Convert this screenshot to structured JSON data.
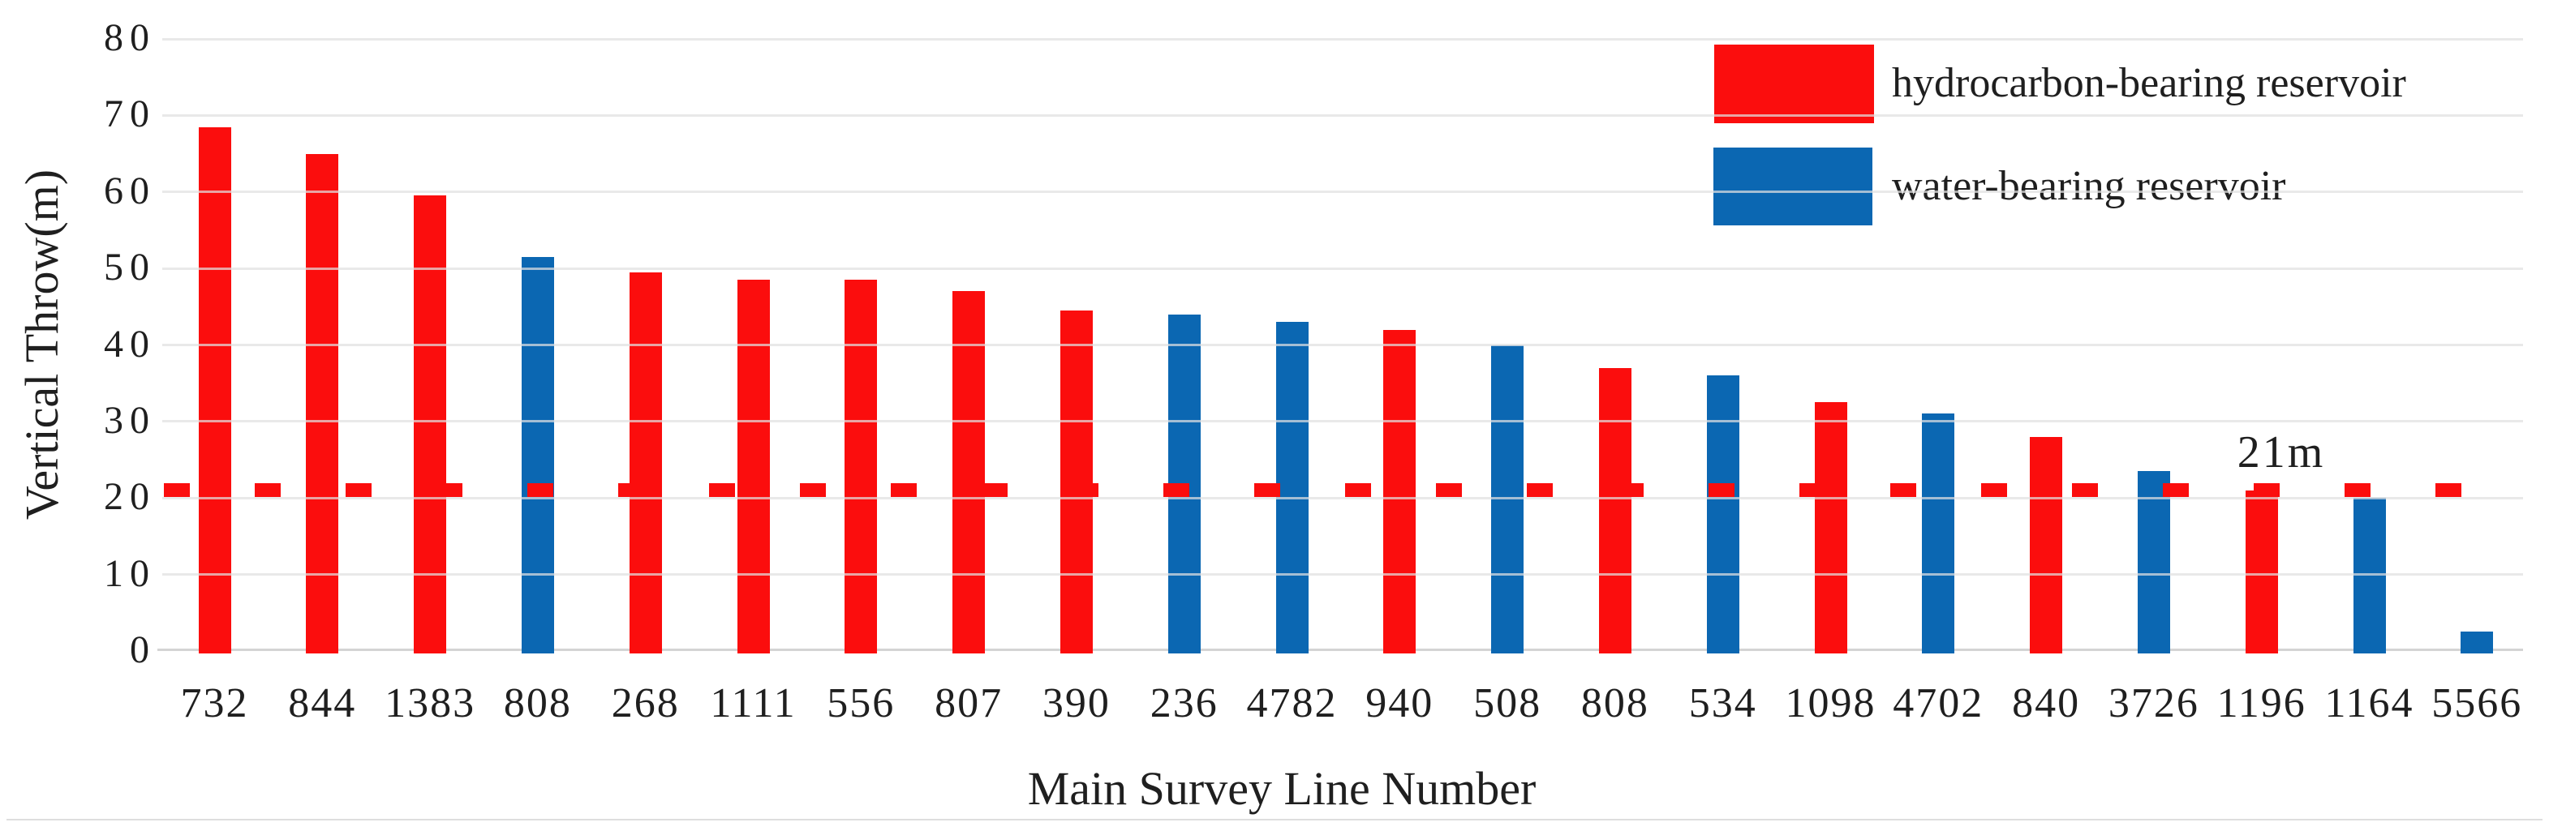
{
  "chart_data": {
    "type": "bar",
    "title": "",
    "xlabel": "Main Survey Line Number",
    "ylabel": "Vertical Throw(m)",
    "ylim": [
      0,
      80
    ],
    "ytick_step": 10,
    "yticks": [
      0,
      10,
      20,
      30,
      40,
      50,
      60,
      70,
      80
    ],
    "grid": true,
    "legend_position": "top-right",
    "categories": [
      "732",
      "844",
      "1383",
      "808",
      "268",
      "1111",
      "556",
      "807",
      "390",
      "236",
      "4782",
      "940",
      "508",
      "808",
      "534",
      "1098",
      "4702",
      "840",
      "3726",
      "1196",
      "1164",
      "5566"
    ],
    "bars": [
      {
        "category": "732",
        "value": 68.5,
        "series": "hydrocarbon-bearing reservoir"
      },
      {
        "category": "844",
        "value": 65,
        "series": "hydrocarbon-bearing reservoir"
      },
      {
        "category": "1383",
        "value": 59.5,
        "series": "hydrocarbon-bearing reservoir"
      },
      {
        "category": "808",
        "value": 51.5,
        "series": "water-bearing reservoir"
      },
      {
        "category": "268",
        "value": 49.5,
        "series": "hydrocarbon-bearing reservoir"
      },
      {
        "category": "1111",
        "value": 48.5,
        "series": "hydrocarbon-bearing reservoir"
      },
      {
        "category": "556",
        "value": 48.5,
        "series": "hydrocarbon-bearing reservoir"
      },
      {
        "category": "807",
        "value": 47,
        "series": "hydrocarbon-bearing reservoir"
      },
      {
        "category": "390",
        "value": 44.5,
        "series": "hydrocarbon-bearing reservoir"
      },
      {
        "category": "236",
        "value": 44,
        "series": "water-bearing reservoir"
      },
      {
        "category": "4782",
        "value": 43,
        "series": "water-bearing reservoir"
      },
      {
        "category": "940",
        "value": 42,
        "series": "hydrocarbon-bearing reservoir"
      },
      {
        "category": "508",
        "value": 40,
        "series": "water-bearing reservoir"
      },
      {
        "category": "808",
        "value": 37,
        "series": "hydrocarbon-bearing reservoir"
      },
      {
        "category": "534",
        "value": 36,
        "series": "water-bearing reservoir"
      },
      {
        "category": "1098",
        "value": 32.5,
        "series": "hydrocarbon-bearing reservoir"
      },
      {
        "category": "4702",
        "value": 31,
        "series": "water-bearing reservoir"
      },
      {
        "category": "840",
        "value": 28,
        "series": "hydrocarbon-bearing reservoir"
      },
      {
        "category": "3726",
        "value": 23.5,
        "series": "water-bearing reservoir"
      },
      {
        "category": "1196",
        "value": 21,
        "series": "hydrocarbon-bearing reservoir"
      },
      {
        "category": "1164",
        "value": 20,
        "series": "water-bearing reservoir"
      },
      {
        "category": "5566",
        "value": 2.5,
        "series": "water-bearing reservoir"
      }
    ],
    "legend": [
      {
        "name": "hydrocarbon-bearing reservoir",
        "color": "#FB0D0D"
      },
      {
        "name": "water-bearing reservoir",
        "color": "#0B67B2"
      }
    ],
    "reference_line": {
      "value": 21,
      "label": "21m",
      "style": "dashed",
      "color": "#FB0D0D"
    }
  },
  "colors": {
    "gridline": "rgba(224,224,224,0.72)",
    "axis_line": "#d4d4d4",
    "text": "#1f1f1f",
    "background": "#ffffff"
  }
}
